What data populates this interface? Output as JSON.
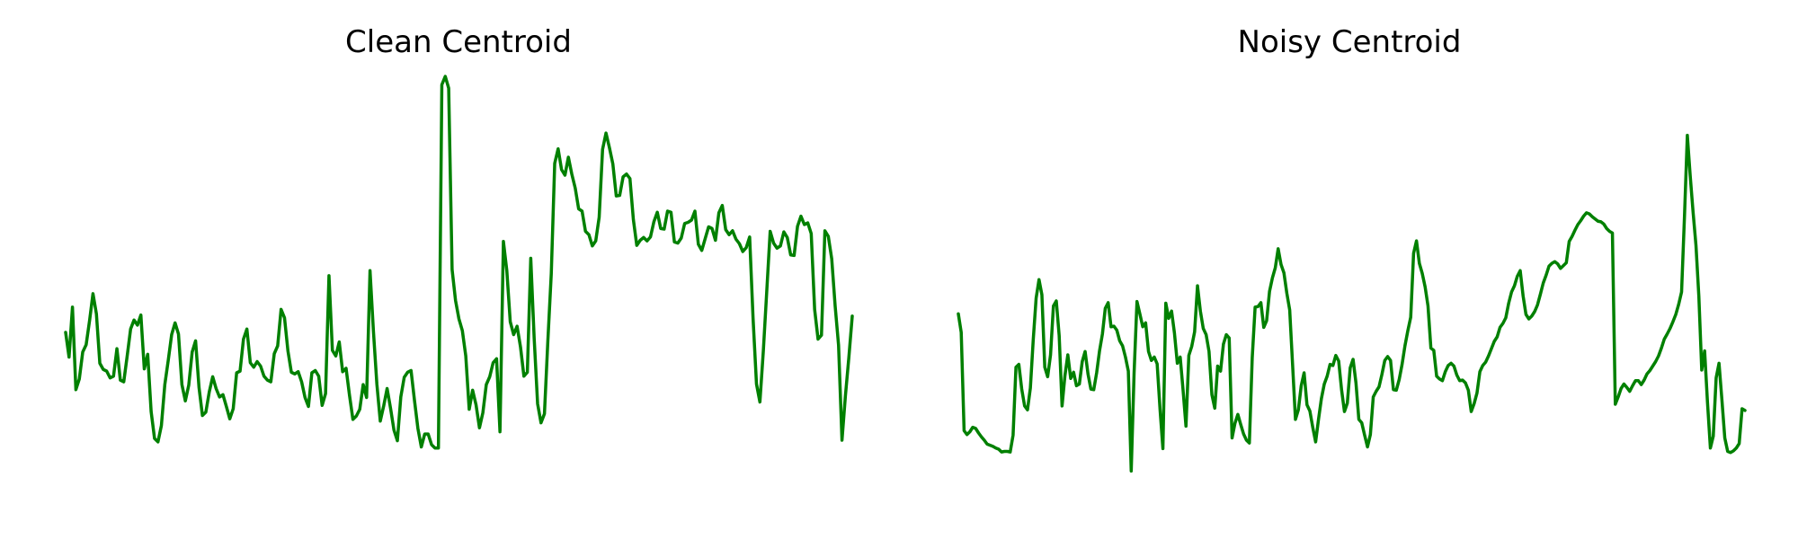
{
  "colors": {
    "line": "#008000",
    "background": "#ffffff"
  },
  "chart_data": [
    {
      "type": "line",
      "title": "Clean Centroid",
      "xlabel": "",
      "ylabel": "",
      "grid": false,
      "axes_visible": false,
      "ylim": [
        -3.2,
        4.8
      ],
      "y": [
        0.0,
        -0.44,
        0.45,
        -1.02,
        -0.83,
        -0.35,
        -0.22,
        0.21,
        0.69,
        0.33,
        -0.55,
        -0.66,
        -0.69,
        -0.81,
        -0.78,
        -0.29,
        -0.85,
        -0.88,
        -0.42,
        0.06,
        0.22,
        0.13,
        0.31,
        -0.65,
        -0.39,
        -1.41,
        -1.89,
        -1.95,
        -1.66,
        -0.93,
        -0.5,
        -0.04,
        0.17,
        -0.03,
        -0.93,
        -1.22,
        -0.94,
        -0.35,
        -0.15,
        -0.98,
        -1.48,
        -1.42,
        -1.06,
        -0.79,
        -1.0,
        -1.15,
        -1.11,
        -1.32,
        -1.54,
        -1.36,
        -0.72,
        -0.69,
        -0.12,
        0.06,
        -0.54,
        -0.62,
        -0.52,
        -0.6,
        -0.78,
        -0.85,
        -0.88,
        -0.38,
        -0.24,
        0.41,
        0.26,
        -0.33,
        -0.71,
        -0.74,
        -0.7,
        -0.88,
        -1.16,
        -1.32,
        -0.72,
        -0.68,
        -0.78,
        -1.3,
        -1.09,
        1.01,
        -0.32,
        -0.42,
        -0.17,
        -0.7,
        -0.64,
        -1.12,
        -1.55,
        -1.49,
        -1.37,
        -0.93,
        -1.16,
        1.1,
        0.02,
        -0.92,
        -1.58,
        -1.31,
        -1.0,
        -1.35,
        -1.74,
        -1.93,
        -1.15,
        -0.8,
        -0.71,
        -0.68,
        -1.21,
        -1.71,
        -2.04,
        -1.81,
        -1.81,
        -2.0,
        -2.06,
        -2.06,
        4.41,
        4.56,
        4.35,
        1.12,
        0.57,
        0.24,
        0.03,
        -0.42,
        -1.37,
        -1.03,
        -1.29,
        -1.7,
        -1.43,
        -0.93,
        -0.79,
        -0.54,
        -0.47,
        -1.77,
        1.62,
        1.1,
        0.19,
        -0.04,
        0.11,
        -0.26,
        -0.78,
        -0.71,
        1.32,
        -0.11,
        -1.27,
        -1.61,
        -1.45,
        -0.15,
        1.05,
        3.01,
        3.27,
        2.9,
        2.8,
        3.12,
        2.82,
        2.57,
        2.2,
        2.16,
        1.8,
        1.74,
        1.54,
        1.63,
        2.05,
        3.26,
        3.55,
        3.29,
        3.0,
        2.43,
        2.44,
        2.77,
        2.82,
        2.74,
        2.01,
        1.55,
        1.64,
        1.69,
        1.63,
        1.7,
        1.97,
        2.14,
        1.85,
        1.84,
        2.16,
        2.14,
        1.61,
        1.59,
        1.68,
        1.94,
        1.96,
        2.0,
        2.16,
        1.57,
        1.46,
        1.67,
        1.88,
        1.85,
        1.64,
        2.13,
        2.26,
        1.83,
        1.74,
        1.81,
        1.66,
        1.58,
        1.44,
        1.51,
        1.7,
        0.25,
        -0.92,
        -1.24,
        -0.33,
        0.73,
        1.8,
        1.59,
        1.5,
        1.54,
        1.79,
        1.69,
        1.38,
        1.37,
        1.89,
        2.07,
        1.92,
        1.95,
        1.76,
        0.41,
        -0.12,
        -0.05,
        1.81,
        1.71,
        1.31,
        0.47,
        -0.23,
        -1.92,
        -1.13,
        -0.45,
        0.29
      ]
    },
    {
      "type": "line",
      "title": "Noisy Centroid",
      "xlabel": "",
      "ylabel": "",
      "grid": false,
      "axes_visible": false,
      "ylim": [
        -3.2,
        4.8
      ],
      "y": [
        0.33,
        0.0,
        -1.75,
        -1.82,
        -1.77,
        -1.69,
        -1.71,
        -1.79,
        -1.86,
        -1.92,
        -1.99,
        -2.01,
        -2.03,
        -2.06,
        -2.08,
        -2.13,
        -2.12,
        -2.12,
        -2.13,
        -1.83,
        -0.62,
        -0.57,
        -1.01,
        -1.31,
        -1.38,
        -0.99,
        -0.13,
        0.61,
        0.94,
        0.67,
        -0.62,
        -0.79,
        -0.4,
        0.47,
        0.56,
        -0.06,
        -1.31,
        -0.77,
        -0.4,
        -0.82,
        -0.71,
        -0.95,
        -0.92,
        -0.52,
        -0.34,
        -0.74,
        -1.01,
        -1.02,
        -0.72,
        -0.33,
        -0.03,
        0.43,
        0.53,
        0.1,
        0.11,
        0.04,
        -0.15,
        -0.24,
        -0.44,
        -0.69,
        -2.47,
        -0.72,
        0.55,
        0.33,
        0.1,
        0.17,
        -0.34,
        -0.5,
        -0.44,
        -0.56,
        -1.37,
        -2.07,
        0.52,
        0.25,
        0.38,
        -0.01,
        -0.55,
        -0.44,
        -1.03,
        -1.67,
        -0.41,
        -0.25,
        0.01,
        0.83,
        0.38,
        0.07,
        -0.04,
        -0.34,
        -1.11,
        -1.35,
        -0.6,
        -0.69,
        -0.21,
        -0.04,
        -0.1,
        -1.88,
        -1.62,
        -1.46,
        -1.64,
        -1.81,
        -1.92,
        -1.97,
        -0.45,
        0.45,
        0.46,
        0.53,
        0.09,
        0.21,
        0.73,
        0.97,
        1.15,
        1.49,
        1.21,
        1.06,
        0.7,
        0.4,
        -0.57,
        -1.55,
        -1.38,
        -0.95,
        -0.72,
        -1.29,
        -1.4,
        -1.69,
        -1.95,
        -1.55,
        -1.18,
        -0.92,
        -0.78,
        -0.57,
        -0.59,
        -0.41,
        -0.51,
        -1.02,
        -1.41,
        -1.26,
        -0.63,
        -0.48,
        -0.9,
        -1.55,
        -1.61,
        -1.83,
        -2.04,
        -1.82,
        -1.15,
        -1.05,
        -0.97,
        -0.75,
        -0.5,
        -0.43,
        -0.5,
        -1.02,
        -1.03,
        -0.84,
        -0.57,
        -0.24,
        0.03,
        0.27,
        1.41,
        1.63,
        1.23,
        1.05,
        0.81,
        0.47,
        -0.28,
        -0.32,
        -0.78,
        -0.83,
        -0.86,
        -0.7,
        -0.59,
        -0.55,
        -0.6,
        -0.76,
        -0.86,
        -0.85,
        -0.9,
        -1.03,
        -1.41,
        -1.27,
        -1.08,
        -0.7,
        -0.59,
        -0.53,
        -0.42,
        -0.29,
        -0.16,
        -0.08,
        0.09,
        0.16,
        0.26,
        0.52,
        0.72,
        0.83,
        1.0,
        1.1,
        0.65,
        0.32,
        0.24,
        0.29,
        0.37,
        0.49,
        0.68,
        0.88,
        1.02,
        1.18,
        1.23,
        1.26,
        1.22,
        1.14,
        1.19,
        1.24,
        1.62,
        1.71,
        1.82,
        1.92,
        1.99,
        2.07,
        2.13,
        2.11,
        2.06,
        2.02,
        1.98,
        1.97,
        1.93,
        1.85,
        1.8,
        1.77,
        -1.28,
        -1.15,
        -1.0,
        -0.92,
        -0.98,
        -1.05,
        -0.95,
        -0.86,
        -0.86,
        -0.93,
        -0.85,
        -0.74,
        -0.68,
        -0.6,
        -0.52,
        -0.42,
        -0.28,
        -0.12,
        -0.03,
        0.07,
        0.19,
        0.32,
        0.5,
        0.72,
        2.05,
        3.51,
        2.79,
        2.14,
        1.55,
        0.64,
        -0.67,
        -0.33,
        -1.25,
        -2.06,
        -1.85,
        -0.81,
        -0.55,
        -1.2,
        -1.88,
        -2.12,
        -2.14,
        -2.11,
        -2.06,
        -1.98,
        -1.36,
        -1.39
      ]
    }
  ]
}
